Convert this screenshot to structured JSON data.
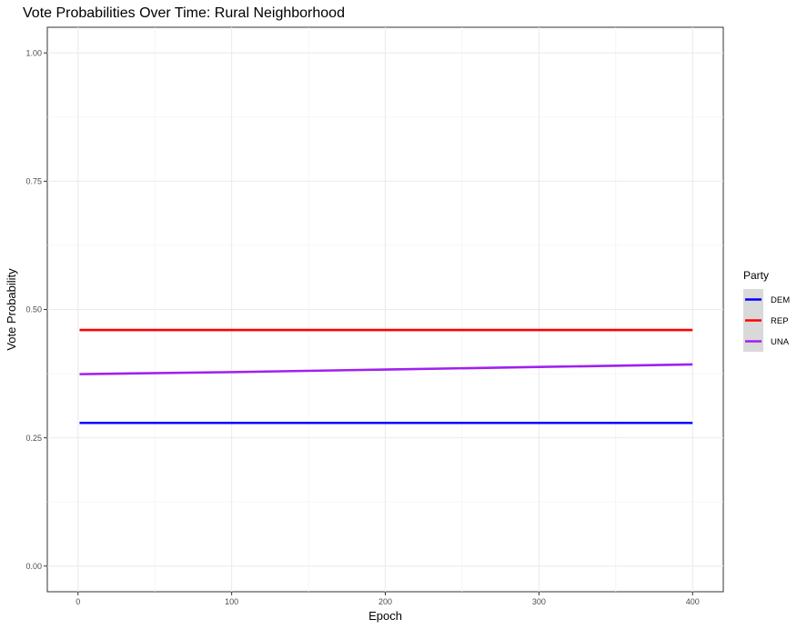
{
  "chart_data": {
    "type": "line",
    "title": "Vote Probabilities Over Time: Rural Neighborhood",
    "xlabel": "Epoch",
    "ylabel": "Vote Probability",
    "xlim": [
      -20,
      420
    ],
    "ylim": [
      -0.05,
      1.05
    ],
    "x_ticks": [
      0,
      100,
      200,
      300,
      400
    ],
    "y_ticks": [
      0.0,
      0.25,
      0.5,
      0.75,
      1.0
    ],
    "x_tick_labels": [
      "0",
      "100",
      "200",
      "300",
      "400"
    ],
    "y_tick_labels": [
      "0.00",
      "0.25",
      "0.50",
      "0.75",
      "1.00"
    ],
    "grid": true,
    "legend": {
      "title": "Party",
      "placement": "right",
      "entries": [
        "DEM",
        "REP",
        "UNA"
      ]
    },
    "series": [
      {
        "name": "DEM",
        "color": "#0000ff",
        "x": [
          1,
          100,
          200,
          300,
          400
        ],
        "y": [
          0.279,
          0.279,
          0.279,
          0.279,
          0.279
        ]
      },
      {
        "name": "REP",
        "color": "#ff0000",
        "x": [
          1,
          100,
          200,
          300,
          400
        ],
        "y": [
          0.46,
          0.46,
          0.46,
          0.46,
          0.46
        ]
      },
      {
        "name": "UNA",
        "color": "#a020f0",
        "x": [
          1,
          100,
          200,
          300,
          400
        ],
        "y": [
          0.374,
          0.378,
          0.383,
          0.388,
          0.393
        ]
      }
    ]
  }
}
